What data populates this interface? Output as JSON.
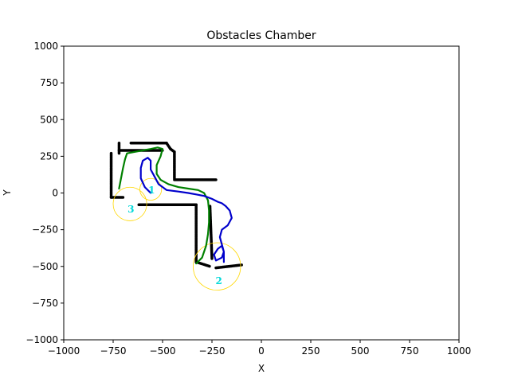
{
  "chart_data": {
    "type": "line",
    "title": "Obstacles Chamber",
    "xlabel": "X",
    "ylabel": "Y",
    "xlim": [
      -1000,
      1000
    ],
    "ylim": [
      -1000,
      1000
    ],
    "xticks": [
      -1000,
      -750,
      -500,
      -250,
      0,
      250,
      500,
      750,
      1000
    ],
    "yticks": [
      -1000,
      -750,
      -500,
      -250,
      0,
      250,
      500,
      750,
      1000
    ],
    "xtick_labels": [
      "−1000",
      "−750",
      "−500",
      "−250",
      "0",
      "250",
      "500",
      "750",
      "1000"
    ],
    "ytick_labels": [
      "−1000",
      "−750",
      "−500",
      "−250",
      "0",
      "250",
      "500",
      "750",
      "1000"
    ],
    "grid": false,
    "series": [
      {
        "role": "obstacle-walls",
        "color": "#000000",
        "segments": [
          [
            [
              -760,
              270
            ],
            [
              -760,
              -30
            ]
          ],
          [
            [
              -760,
              -30
            ],
            [
              -700,
              -30
            ]
          ],
          [
            [
              -720,
              290
            ],
            [
              -500,
              290
            ]
          ],
          [
            [
              -720,
              340
            ],
            [
              -720,
              270
            ]
          ],
          [
            [
              -660,
              340
            ],
            [
              -480,
              340
            ]
          ],
          [
            [
              -480,
              340
            ],
            [
              -460,
              300
            ]
          ],
          [
            [
              -460,
              300
            ],
            [
              -440,
              280
            ]
          ],
          [
            [
              -440,
              280
            ],
            [
              -440,
              100
            ]
          ],
          [
            [
              -440,
              90
            ],
            [
              -230,
              90
            ]
          ],
          [
            [
              -620,
              -80
            ],
            [
              -330,
              -80
            ]
          ],
          [
            [
              -330,
              -80
            ],
            [
              -330,
              -470
            ]
          ],
          [
            [
              -330,
              -470
            ],
            [
              -260,
              -500
            ]
          ],
          [
            [
              -260,
              -90
            ],
            [
              -250,
              -450
            ]
          ],
          [
            [
              -230,
              -510
            ],
            [
              -100,
              -490
            ]
          ]
        ]
      },
      {
        "role": "path-green",
        "color": "#008000",
        "points": [
          [
            -720,
            30
          ],
          [
            -710,
            100
          ],
          [
            -700,
            170
          ],
          [
            -690,
            230
          ],
          [
            -680,
            270
          ],
          [
            -640,
            280
          ],
          [
            -600,
            290
          ],
          [
            -560,
            300
          ],
          [
            -525,
            310
          ],
          [
            -500,
            300
          ],
          [
            -510,
            250
          ],
          [
            -530,
            190
          ],
          [
            -530,
            130
          ],
          [
            -510,
            90
          ],
          [
            -470,
            60
          ],
          [
            -420,
            40
          ],
          [
            -370,
            30
          ],
          [
            -320,
            20
          ],
          [
            -290,
            0
          ],
          [
            -270,
            -50
          ],
          [
            -265,
            -120
          ],
          [
            -265,
            -200
          ],
          [
            -270,
            -280
          ],
          [
            -280,
            -360
          ],
          [
            -300,
            -440
          ],
          [
            -330,
            -480
          ]
        ]
      },
      {
        "role": "path-blue",
        "color": "#0000cc",
        "points": [
          [
            -560,
            0
          ],
          [
            -590,
            40
          ],
          [
            -610,
            100
          ],
          [
            -610,
            170
          ],
          [
            -600,
            220
          ],
          [
            -575,
            240
          ],
          [
            -560,
            220
          ],
          [
            -560,
            160
          ],
          [
            -540,
            110
          ],
          [
            -520,
            60
          ],
          [
            -480,
            20
          ],
          [
            -420,
            10
          ],
          [
            -370,
            0
          ],
          [
            -330,
            -10
          ],
          [
            -290,
            -20
          ],
          [
            -250,
            -40
          ],
          [
            -220,
            -60
          ],
          [
            -200,
            -70
          ],
          [
            -180,
            -90
          ],
          [
            -160,
            -120
          ],
          [
            -150,
            -170
          ],
          [
            -170,
            -220
          ],
          [
            -200,
            -250
          ],
          [
            -210,
            -300
          ],
          [
            -200,
            -350
          ],
          [
            -190,
            -400
          ],
          [
            -200,
            -440
          ],
          [
            -230,
            -460
          ],
          [
            -240,
            -420
          ],
          [
            -220,
            -380
          ],
          [
            -200,
            -360
          ],
          [
            -190,
            -400
          ],
          [
            -190,
            -470
          ]
        ]
      }
    ],
    "circles": [
      {
        "label": "1",
        "center": [
          -560,
          25
        ],
        "radius": 55,
        "label_at": [
          -555,
          20
        ],
        "color": "#ffd700"
      },
      {
        "label": "2",
        "center": [
          -225,
          -500
        ],
        "radius": 120,
        "label_at": [
          -215,
          -600
        ],
        "color": "#ffd700"
      },
      {
        "label": "3",
        "center": [
          -665,
          -75
        ],
        "radius": 85,
        "label_at": [
          -660,
          -110
        ],
        "color": "#ffd700"
      }
    ]
  }
}
